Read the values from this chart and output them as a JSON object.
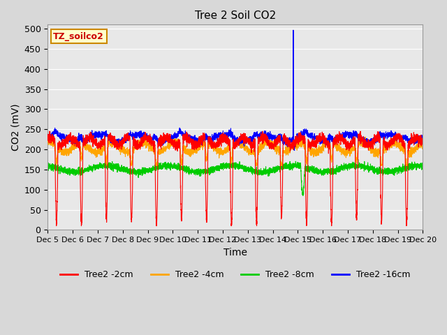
{
  "title": "Tree 2 Soil CO2",
  "xlabel": "Time",
  "ylabel": "CO2 (mV)",
  "ylim": [
    0,
    510
  ],
  "yticks": [
    0,
    50,
    100,
    150,
    200,
    250,
    300,
    350,
    400,
    450,
    500
  ],
  "xlim": [
    5,
    20
  ],
  "x_tick_labels": [
    "Dec 5",
    "Dec 6",
    "Dec 7",
    "Dec 8",
    "Dec 9",
    "Dec 10",
    "Dec 11",
    "Dec 12",
    "Dec 13",
    "Dec 14",
    "Dec 15",
    "Dec 16",
    "Dec 17",
    "Dec 18",
    "Dec 19",
    "Dec 20"
  ],
  "series_colors": [
    "#ff0000",
    "#ffa500",
    "#00cc00",
    "#0000ff"
  ],
  "series_labels": [
    "Tree2 -2cm",
    "Tree2 -4cm",
    "Tree2 -8cm",
    "Tree2 -16cm"
  ],
  "background_color": "#d8d8d8",
  "plot_bg_color": "#e8e8e8",
  "grid_color": "#ffffff",
  "annotation_text": "TZ_soilco2",
  "annotation_bg": "#ffffcc",
  "annotation_border": "#cc8800",
  "annotation_color": "#cc0000",
  "figsize": [
    6.4,
    4.8
  ],
  "dpi": 100
}
